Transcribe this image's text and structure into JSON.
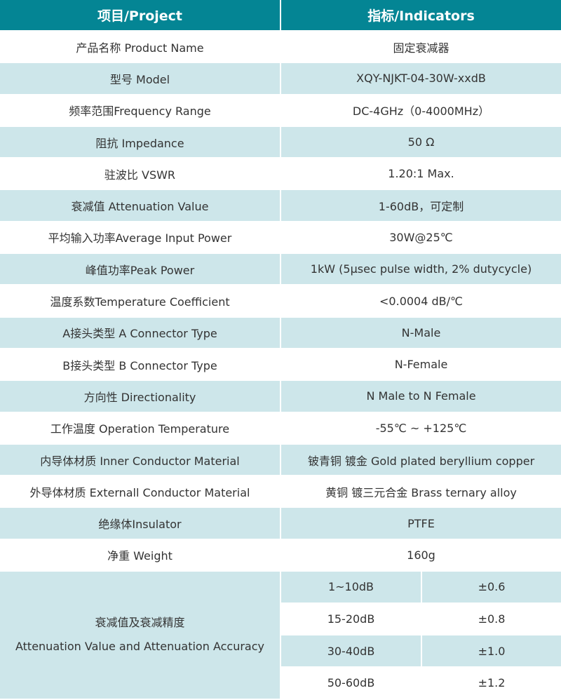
{
  "header": {
    "project": "项目/Project",
    "indicators": "指标/Indicators"
  },
  "rows": [
    {
      "label": "产品名称 Product Name",
      "value": "固定衰减器"
    },
    {
      "label": "型号 Model",
      "value": "XQY-NJKT-04-30W-xxdB"
    },
    {
      "label": "频率范围Frequency Range",
      "value": "DC-4GHz（0-4000MHz）"
    },
    {
      "label": "阻抗 Impedance",
      "value": "50 Ω"
    },
    {
      "label": "驻波比 VSWR",
      "value": "1.20:1 Max."
    },
    {
      "label": "衰减值 Attenuation Value",
      "value": "1-60dB，可定制"
    },
    {
      "label": "平均输入功率Average Input Power",
      "value": "30W@25℃"
    },
    {
      "label": "峰值功率Peak Power",
      "value": "1kW (5μsec pulse width, 2% dutycycle)"
    },
    {
      "label": "温度系数Temperature Coefficient",
      "value": "<0.0004 dB/℃"
    },
    {
      "label": "A接头类型 A Connector Type",
      "value": "N-Male"
    },
    {
      "label": "B接头类型 B Connector Type",
      "value": "N-Female"
    },
    {
      "label": "方向性 Directionality",
      "value": "N Male to N Female"
    },
    {
      "label": "工作温度 Operation Temperature",
      "value": "-55℃ ~ +125℃"
    },
    {
      "label": "内导体材质 Inner Conductor Material",
      "value": "铍青铜 镀金 Gold plated beryllium copper"
    },
    {
      "label": "外导体材质 Externall Conductor Material",
      "value": "黄铜 镀三元合金 Brass ternary alloy"
    },
    {
      "label": "绝缘体Insulator",
      "value": "PTFE"
    },
    {
      "label": "净重 Weight",
      "value": "160g"
    }
  ],
  "accuracy": {
    "label_cn": "衰减值及衰减精度",
    "label_en": "Attenuation Value and Attenuation Accuracy",
    "items": [
      {
        "range": "1~10dB",
        "accuracy": "±0.6"
      },
      {
        "range": "15-20dB",
        "accuracy": "±0.8"
      },
      {
        "range": "30-40dB",
        "accuracy": "±1.0"
      },
      {
        "range": "50-60dB",
        "accuracy": "±1.2"
      }
    ]
  },
  "colors": {
    "header_bg": "#048594",
    "stripe": "#cde6ea"
  }
}
